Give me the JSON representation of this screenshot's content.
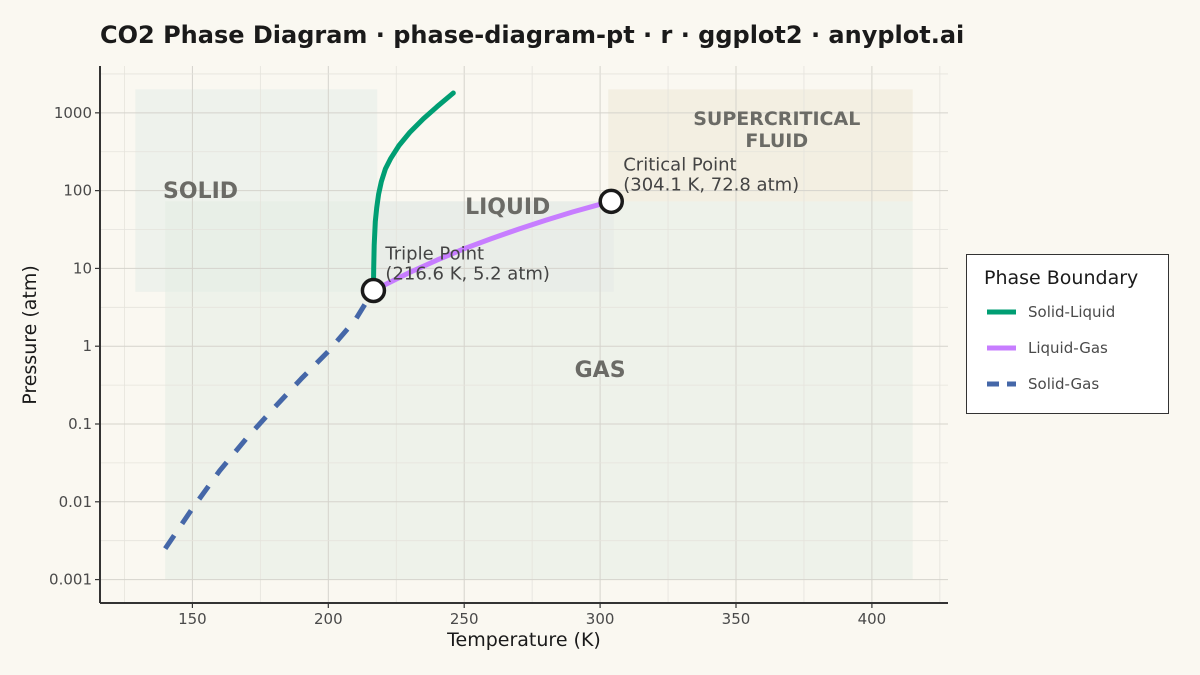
{
  "chart_data": {
    "type": "line",
    "title": "CO2 Phase Diagram · phase-diagram-pt · r · ggplot2 · anyplot.ai",
    "xlabel": "Temperature (K)",
    "ylabel": "Pressure (atm)",
    "xlim": [
      116,
      428
    ],
    "ylim": [
      0.0005,
      4000
    ],
    "yscale": "log",
    "x_ticks": [
      150,
      200,
      250,
      300,
      350,
      400
    ],
    "y_ticks": [
      0.001,
      0.01,
      0.1,
      1,
      10,
      100,
      1000
    ],
    "y_tick_labels": [
      "0.001",
      "0.01",
      "0.1",
      "1",
      "10",
      "100",
      "1000"
    ],
    "grid": true,
    "legend": {
      "title": "Phase Boundary",
      "placement": "right"
    },
    "series": [
      {
        "name": "Solid-Liquid",
        "color": "#009E73",
        "dash": "solid",
        "points": [
          [
            216.6,
            5.2
          ],
          [
            216.7,
            10
          ],
          [
            216.9,
            20
          ],
          [
            217.3,
            40
          ],
          [
            217.8,
            60
          ],
          [
            218.5,
            90
          ],
          [
            219.5,
            130
          ],
          [
            221,
            190
          ],
          [
            223,
            260
          ],
          [
            226,
            380
          ],
          [
            230,
            560
          ],
          [
            235,
            840
          ],
          [
            240,
            1200
          ],
          [
            246,
            1800
          ]
        ]
      },
      {
        "name": "Liquid-Gas",
        "color": "#C77DFF",
        "dash": "solid",
        "points": [
          [
            216.6,
            5.2
          ],
          [
            230,
            8.9
          ],
          [
            240,
            12.8
          ],
          [
            250,
            17.9
          ],
          [
            260,
            24.2
          ],
          [
            270,
            32
          ],
          [
            280,
            41.6
          ],
          [
            290,
            53.2
          ],
          [
            300,
            66.8
          ],
          [
            304.1,
            72.8
          ]
        ]
      },
      {
        "name": "Solid-Gas",
        "color": "#4567A8",
        "dash": "dashed",
        "points": [
          [
            140,
            0.0025
          ],
          [
            150,
            0.0082
          ],
          [
            160,
            0.025
          ],
          [
            170,
            0.066
          ],
          [
            180,
            0.16
          ],
          [
            190,
            0.38
          ],
          [
            200,
            0.86
          ],
          [
            210,
            2.2
          ],
          [
            216.6,
            5.2
          ]
        ]
      }
    ],
    "regions": [
      {
        "label": "SOLID",
        "fill": "#E4ECE8",
        "opacity": 0.55,
        "x": [
          129,
          218
        ],
        "y": [
          5,
          2000
        ],
        "label_at": [
          153,
          80
        ]
      },
      {
        "label": "LIQUID",
        "fill": "#E7E7EC",
        "opacity": 0.6,
        "x": [
          218,
          305
        ],
        "y": [
          5,
          72.8
        ],
        "label_at": [
          266,
          50
        ]
      },
      {
        "label": "GAS",
        "fill": "#E3EDE3",
        "opacity": 0.55,
        "x": [
          140,
          415
        ],
        "y": [
          0.001,
          72.8
        ],
        "label_at": [
          300,
          0.4
        ]
      },
      {
        "label": "SUPERCRITICAL\nFLUID",
        "fill": "#EFEAD8",
        "opacity": 0.6,
        "x": [
          303,
          415
        ],
        "y": [
          72.8,
          2000
        ],
        "label_at": [
          365,
          700
        ]
      }
    ],
    "annotations": [
      {
        "id": "triple",
        "label": "Triple Point",
        "value": "(216.6 K, 5.2 atm)",
        "x": 216.6,
        "y": 5.2
      },
      {
        "id": "critical",
        "label": "Critical Point",
        "value": "(304.1 K, 72.8 atm)",
        "x": 304.1,
        "y": 72.8
      }
    ]
  }
}
